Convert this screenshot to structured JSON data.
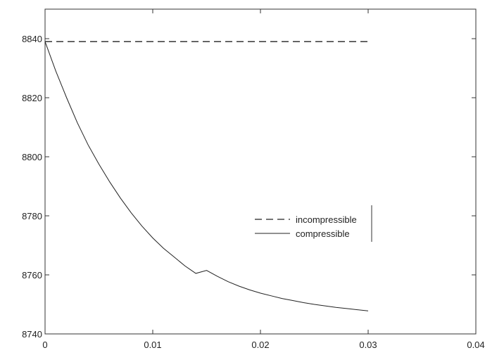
{
  "chart_data": {
    "type": "line",
    "title": "",
    "xlabel": "",
    "ylabel": "",
    "xlim": [
      0,
      0.04
    ],
    "ylim": [
      8740,
      8850
    ],
    "x_ticks": [
      0,
      0.01,
      0.02,
      0.03,
      0.04
    ],
    "x_tick_labels": [
      "0",
      "0.01",
      "0.02",
      "0.03",
      "0.04"
    ],
    "y_ticks": [
      8740,
      8760,
      8780,
      8800,
      8820,
      8840
    ],
    "y_tick_labels": [
      "8740",
      "8760",
      "8780",
      "8800",
      "8820",
      "8840"
    ],
    "grid": false,
    "legend_position": "right-middle",
    "series": [
      {
        "name": "incompressible",
        "style": "dashed",
        "color": "#222222",
        "x": [
          0,
          0.03
        ],
        "y": [
          8839,
          8839
        ]
      },
      {
        "name": "compressible",
        "style": "solid",
        "color": "#222222",
        "x": [
          0,
          0.001,
          0.002,
          0.003,
          0.004,
          0.005,
          0.006,
          0.007,
          0.008,
          0.009,
          0.01,
          0.011,
          0.012,
          0.013,
          0.014,
          0.015,
          0.016,
          0.017,
          0.018,
          0.019,
          0.02,
          0.021,
          0.022,
          0.023,
          0.024,
          0.025,
          0.026,
          0.027,
          0.028,
          0.029,
          0.03
        ],
        "y": [
          8839,
          8829,
          8820,
          8811.5,
          8804,
          8797.5,
          8791.5,
          8786,
          8781,
          8776.5,
          8772.5,
          8769,
          8766,
          8763,
          8760.5,
          8761.5,
          8759.5,
          8757.7,
          8756.2,
          8754.9,
          8753.8,
          8752.9,
          8752,
          8751.3,
          8750.6,
          8750,
          8749.5,
          8749,
          8748.6,
          8748.2,
          8747.8
        ]
      }
    ]
  }
}
